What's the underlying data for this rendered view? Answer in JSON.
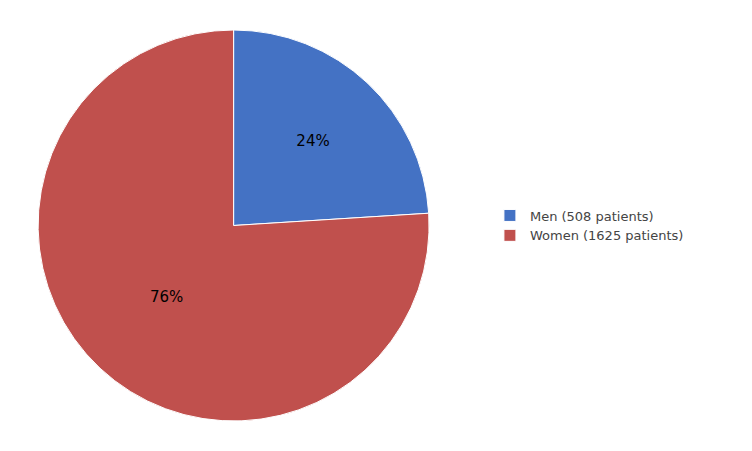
{
  "chart_data": {
    "type": "pie",
    "categories": [
      "Men (508 patients)",
      "Women (1625 patients)"
    ],
    "values": [
      24,
      76
    ],
    "value_labels": [
      "24%",
      "76%"
    ],
    "colors": [
      "#4472C4",
      "#C0504D"
    ],
    "data_labels": true,
    "legend": "right"
  }
}
